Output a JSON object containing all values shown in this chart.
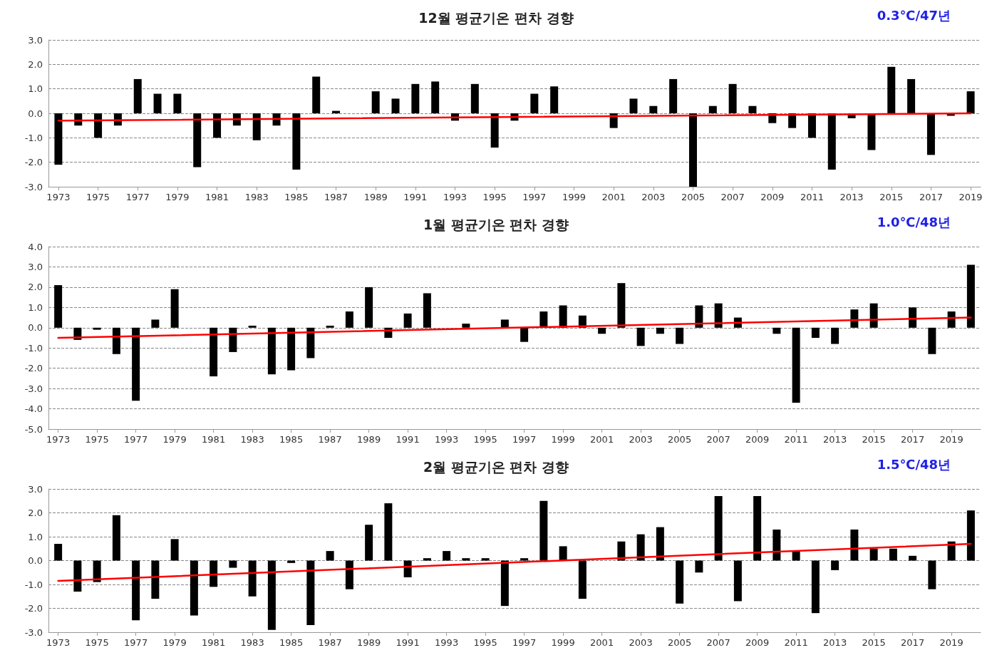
{
  "chart_data": [
    {
      "type": "bar",
      "title": "12월 평균기온 편차 경향",
      "annotations": [
        "0.3℃/47년"
      ],
      "x": [
        1973,
        1974,
        1975,
        1976,
        1977,
        1978,
        1979,
        1980,
        1981,
        1982,
        1983,
        1984,
        1985,
        1986,
        1987,
        1988,
        1989,
        1990,
        1991,
        1992,
        1993,
        1994,
        1995,
        1996,
        1997,
        1998,
        1999,
        2000,
        2001,
        2002,
        2003,
        2004,
        2005,
        2006,
        2007,
        2008,
        2009,
        2010,
        2011,
        2012,
        2013,
        2014,
        2015,
        2016,
        2017,
        2018,
        2019
      ],
      "xlim": [
        1972.5,
        2019.5
      ],
      "xticks": [
        1973,
        1975,
        1977,
        1979,
        1981,
        1983,
        1985,
        1987,
        1989,
        1991,
        1993,
        1995,
        1997,
        1999,
        2001,
        2003,
        2005,
        2007,
        2009,
        2011,
        2013,
        2015,
        2017,
        2019
      ],
      "ylim": [
        -3,
        3
      ],
      "yticks": [
        {
          "value": -3,
          "label": "-3.0"
        },
        {
          "value": -2,
          "label": "-2.0"
        },
        {
          "value": -1,
          "label": "-1.0"
        },
        {
          "value": 0,
          "label": "0.0"
        },
        {
          "value": 1,
          "label": "1.0"
        },
        {
          "value": 2,
          "label": "2.0"
        },
        {
          "value": 3,
          "label": "3.0"
        }
      ],
      "grid": "y",
      "series": [
        {
          "color": "#000000",
          "values": [
            -2.1,
            -0.5,
            -1.0,
            -0.5,
            1.4,
            0.8,
            0.8,
            -2.2,
            -1.0,
            -0.5,
            -1.1,
            -0.5,
            -2.3,
            1.5,
            0.1,
            0.0,
            0.9,
            0.6,
            1.2,
            1.3,
            -0.3,
            1.2,
            -1.4,
            -0.3,
            0.8,
            1.1,
            0.0,
            0.0,
            -0.6,
            0.6,
            0.3,
            1.4,
            -3.0,
            0.3,
            1.2,
            0.3,
            -0.4,
            -0.6,
            -1.0,
            -2.3,
            -0.2,
            -1.5,
            1.9,
            1.4,
            -1.7,
            -0.1,
            0.9
          ]
        },
        {
          "type": "line",
          "color": "#ff0000",
          "x": [
            1973,
            2019
          ],
          "values": [
            -0.3,
            0.0
          ]
        }
      ]
    },
    {
      "type": "bar",
      "title": "1월 평균기온 편차 경향",
      "annotations": [
        "1.0℃/48년"
      ],
      "x": [
        1973,
        1974,
        1975,
        1976,
        1977,
        1978,
        1979,
        1980,
        1981,
        1982,
        1983,
        1984,
        1985,
        1986,
        1987,
        1988,
        1989,
        1990,
        1991,
        1992,
        1993,
        1994,
        1995,
        1996,
        1997,
        1998,
        1999,
        2000,
        2001,
        2002,
        2003,
        2004,
        2005,
        2006,
        2007,
        2008,
        2009,
        2010,
        2011,
        2012,
        2013,
        2014,
        2015,
        2016,
        2017,
        2018,
        2019,
        2020
      ],
      "xlim": [
        1972.5,
        2020.5
      ],
      "xticks": [
        1973,
        1975,
        1977,
        1979,
        1981,
        1983,
        1985,
        1987,
        1989,
        1991,
        1993,
        1995,
        1997,
        1999,
        2001,
        2003,
        2005,
        2007,
        2009,
        2011,
        2013,
        2015,
        2017,
        2019
      ],
      "ylim": [
        -5,
        4
      ],
      "yticks": [
        {
          "value": -5,
          "label": "-5.0"
        },
        {
          "value": -4,
          "label": "-4.0"
        },
        {
          "value": -3,
          "label": "-3.0"
        },
        {
          "value": -2,
          "label": "-2.0"
        },
        {
          "value": -1,
          "label": "-1.0"
        },
        {
          "value": 0,
          "label": "0.0"
        },
        {
          "value": 1,
          "label": "1.0"
        },
        {
          "value": 2,
          "label": "2.0"
        },
        {
          "value": 3,
          "label": "3.0"
        },
        {
          "value": 4,
          "label": "4.0"
        }
      ],
      "grid": "y",
      "series": [
        {
          "color": "#000000",
          "values": [
            2.1,
            -0.6,
            -0.1,
            -1.3,
            -3.6,
            0.4,
            1.9,
            0.0,
            -2.4,
            -1.2,
            0.1,
            -2.3,
            -2.1,
            -1.5,
            0.1,
            0.8,
            2.0,
            -0.5,
            0.7,
            1.7,
            0.0,
            0.2,
            0.0,
            0.4,
            -0.7,
            0.8,
            1.1,
            0.6,
            -0.3,
            2.2,
            -0.9,
            -0.3,
            -0.8,
            1.1,
            1.2,
            0.5,
            0.0,
            -0.3,
            -3.7,
            -0.5,
            -0.8,
            0.9,
            1.2,
            0.0,
            1.0,
            -1.3,
            0.8,
            3.1
          ]
        },
        {
          "type": "line",
          "color": "#ff0000",
          "x": [
            1973,
            2020
          ],
          "values": [
            -0.5,
            0.5
          ]
        }
      ]
    },
    {
      "type": "bar",
      "title": "2월 평균기온 편차 경향",
      "annotations": [
        "1.5℃/48년"
      ],
      "x": [
        1973,
        1974,
        1975,
        1976,
        1977,
        1978,
        1979,
        1980,
        1981,
        1982,
        1983,
        1984,
        1985,
        1986,
        1987,
        1988,
        1989,
        1990,
        1991,
        1992,
        1993,
        1994,
        1995,
        1996,
        1997,
        1998,
        1999,
        2000,
        2001,
        2002,
        2003,
        2004,
        2005,
        2006,
        2007,
        2008,
        2009,
        2010,
        2011,
        2012,
        2013,
        2014,
        2015,
        2016,
        2017,
        2018,
        2019,
        2020
      ],
      "xlim": [
        1972.5,
        2020.5
      ],
      "xticks": [
        1973,
        1975,
        1977,
        1979,
        1981,
        1983,
        1985,
        1987,
        1989,
        1991,
        1993,
        1995,
        1997,
        1999,
        2001,
        2003,
        2005,
        2007,
        2009,
        2011,
        2013,
        2015,
        2017,
        2019
      ],
      "ylim": [
        -3,
        3
      ],
      "yticks": [
        {
          "value": -3,
          "label": "-3.0"
        },
        {
          "value": -2,
          "label": "-2.0"
        },
        {
          "value": -1,
          "label": "-1.0"
        },
        {
          "value": 0,
          "label": "0.0"
        },
        {
          "value": 1,
          "label": "1.0"
        },
        {
          "value": 2,
          "label": "2.0"
        },
        {
          "value": 3,
          "label": "3.0"
        }
      ],
      "grid": "y",
      "series": [
        {
          "color": "#000000",
          "values": [
            0.7,
            -1.3,
            -0.9,
            1.9,
            -2.5,
            -1.6,
            0.9,
            -2.3,
            -1.1,
            -0.3,
            -1.5,
            -2.9,
            -0.1,
            -2.7,
            0.4,
            -1.2,
            1.5,
            2.4,
            -0.7,
            0.1,
            0.4,
            0.1,
            0.1,
            -1.9,
            0.1,
            2.5,
            0.6,
            -1.6,
            0.0,
            0.8,
            1.1,
            1.4,
            -1.8,
            -0.5,
            2.7,
            -1.7,
            2.7,
            1.3,
            0.4,
            -2.2,
            -0.4,
            1.3,
            0.5,
            0.5,
            0.2,
            -1.2,
            0.8,
            2.1
          ]
        },
        {
          "type": "line",
          "color": "#ff0000",
          "x": [
            1973,
            2020
          ],
          "values": [
            -0.85,
            0.7
          ]
        }
      ]
    }
  ]
}
